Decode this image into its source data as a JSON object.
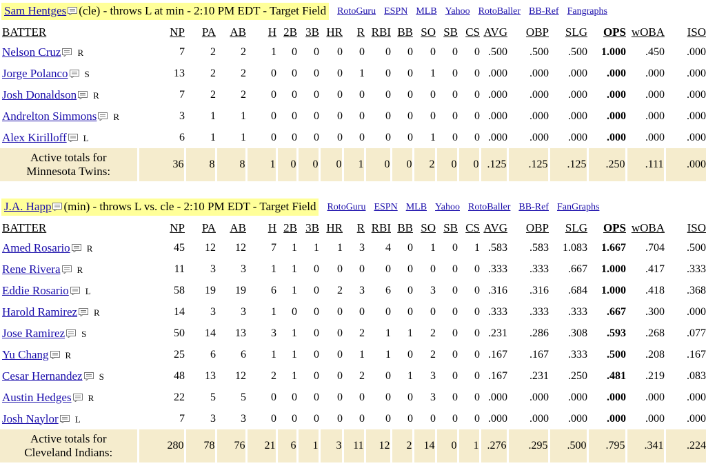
{
  "columns": [
    "BATTER",
    "NP",
    "PA",
    "AB",
    "H",
    "2B",
    "3B",
    "HR",
    "R",
    "RBI",
    "BB",
    "SO",
    "SB",
    "CS",
    "AVG",
    "OBP",
    "SLG",
    "OPS",
    "wOBA",
    "ISO"
  ],
  "ext_links_1": [
    "RotoGuru",
    "ESPN",
    "MLB",
    "Yahoo",
    "RotoBaller",
    "BB-Ref",
    "Fangraphs"
  ],
  "ext_links_2": [
    "RotoGuru",
    "ESPN",
    "MLB",
    "Yahoo",
    "RotoBaller",
    "BB-Ref",
    "FanGraphs"
  ],
  "matchup1": {
    "pitcher": "Sam Hentges",
    "desc": "(cle) - throws L at min - 2:10 PM EDT - Target Field",
    "rows": [
      {
        "name": "Nelson Cruz",
        "hand": "R",
        "vals": [
          "7",
          "2",
          "2",
          "1",
          "0",
          "0",
          "0",
          "0",
          "0",
          "0",
          "0",
          "0",
          "0",
          ".500",
          ".500",
          ".500",
          "1.000",
          ".450",
          ".000"
        ]
      },
      {
        "name": "Jorge Polanco",
        "hand": "S",
        "vals": [
          "13",
          "2",
          "2",
          "0",
          "0",
          "0",
          "0",
          "1",
          "0",
          "0",
          "1",
          "0",
          "0",
          ".000",
          ".000",
          ".000",
          ".000",
          ".000",
          ".000"
        ]
      },
      {
        "name": "Josh Donaldson",
        "hand": "R",
        "vals": [
          "7",
          "2",
          "2",
          "0",
          "0",
          "0",
          "0",
          "0",
          "0",
          "0",
          "0",
          "0",
          "0",
          ".000",
          ".000",
          ".000",
          ".000",
          ".000",
          ".000"
        ]
      },
      {
        "name": "Andrelton Simmons",
        "hand": "R",
        "vals": [
          "3",
          "1",
          "1",
          "0",
          "0",
          "0",
          "0",
          "0",
          "0",
          "0",
          "0",
          "0",
          "0",
          ".000",
          ".000",
          ".000",
          ".000",
          ".000",
          ".000"
        ]
      },
      {
        "name": "Alex Kirilloff",
        "hand": "L",
        "vals": [
          "6",
          "1",
          "1",
          "0",
          "0",
          "0",
          "0",
          "0",
          "0",
          "0",
          "1",
          "0",
          "0",
          ".000",
          ".000",
          ".000",
          ".000",
          ".000",
          ".000"
        ]
      }
    ],
    "totals_label_1": "Active totals for",
    "totals_label_2": "Minnesota Twins:",
    "totals": [
      "36",
      "8",
      "8",
      "1",
      "0",
      "0",
      "0",
      "1",
      "0",
      "0",
      "2",
      "0",
      "0",
      ".125",
      ".125",
      ".125",
      ".250",
      ".111",
      ".000"
    ]
  },
  "matchup2": {
    "pitcher": "J.A. Happ",
    "desc": "(min) - throws L vs. cle - 2:10 PM EDT - Target Field",
    "rows": [
      {
        "name": "Amed Rosario",
        "hand": "R",
        "vals": [
          "45",
          "12",
          "12",
          "7",
          "1",
          "1",
          "1",
          "3",
          "4",
          "0",
          "1",
          "0",
          "1",
          ".583",
          ".583",
          "1.083",
          "1.667",
          ".704",
          ".500"
        ]
      },
      {
        "name": "Rene Rivera",
        "hand": "R",
        "vals": [
          "11",
          "3",
          "3",
          "1",
          "1",
          "0",
          "0",
          "0",
          "0",
          "0",
          "0",
          "0",
          "0",
          ".333",
          ".333",
          ".667",
          "1.000",
          ".417",
          ".333"
        ]
      },
      {
        "name": "Eddie Rosario",
        "hand": "L",
        "vals": [
          "58",
          "19",
          "19",
          "6",
          "1",
          "0",
          "2",
          "3",
          "6",
          "0",
          "3",
          "0",
          "0",
          ".316",
          ".316",
          ".684",
          "1.000",
          ".418",
          ".368"
        ]
      },
      {
        "name": "Harold Ramirez",
        "hand": "R",
        "vals": [
          "14",
          "3",
          "3",
          "1",
          "0",
          "0",
          "0",
          "0",
          "0",
          "0",
          "0",
          "0",
          "0",
          ".333",
          ".333",
          ".333",
          ".667",
          ".300",
          ".000"
        ]
      },
      {
        "name": "Jose Ramirez",
        "hand": "S",
        "vals": [
          "50",
          "14",
          "13",
          "3",
          "1",
          "0",
          "0",
          "2",
          "1",
          "1",
          "2",
          "0",
          "0",
          ".231",
          ".286",
          ".308",
          ".593",
          ".268",
          ".077"
        ]
      },
      {
        "name": "Yu Chang",
        "hand": "R",
        "vals": [
          "25",
          "6",
          "6",
          "1",
          "1",
          "0",
          "0",
          "1",
          "1",
          "0",
          "2",
          "0",
          "0",
          ".167",
          ".167",
          ".333",
          ".500",
          ".208",
          ".167"
        ]
      },
      {
        "name": "Cesar Hernandez",
        "hand": "S",
        "vals": [
          "48",
          "13",
          "12",
          "2",
          "1",
          "0",
          "0",
          "2",
          "0",
          "1",
          "3",
          "0",
          "0",
          ".167",
          ".231",
          ".250",
          ".481",
          ".219",
          ".083"
        ]
      },
      {
        "name": "Austin Hedges",
        "hand": "R",
        "vals": [
          "22",
          "5",
          "5",
          "0",
          "0",
          "0",
          "0",
          "0",
          "0",
          "0",
          "3",
          "0",
          "0",
          ".000",
          ".000",
          ".000",
          ".000",
          ".000",
          ".000"
        ]
      },
      {
        "name": "Josh Naylor",
        "hand": "L",
        "vals": [
          "7",
          "3",
          "3",
          "0",
          "0",
          "0",
          "0",
          "0",
          "0",
          "0",
          "0",
          "0",
          "0",
          ".000",
          ".000",
          ".000",
          ".000",
          ".000",
          ".000"
        ]
      }
    ],
    "totals_label_1": "Active totals for",
    "totals_label_2": "Cleveland Indians:",
    "totals": [
      "280",
      "78",
      "76",
      "21",
      "6",
      "1",
      "3",
      "11",
      "12",
      "2",
      "14",
      "0",
      "1",
      ".276",
      ".295",
      ".500",
      ".795",
      ".341",
      ".224"
    ]
  }
}
